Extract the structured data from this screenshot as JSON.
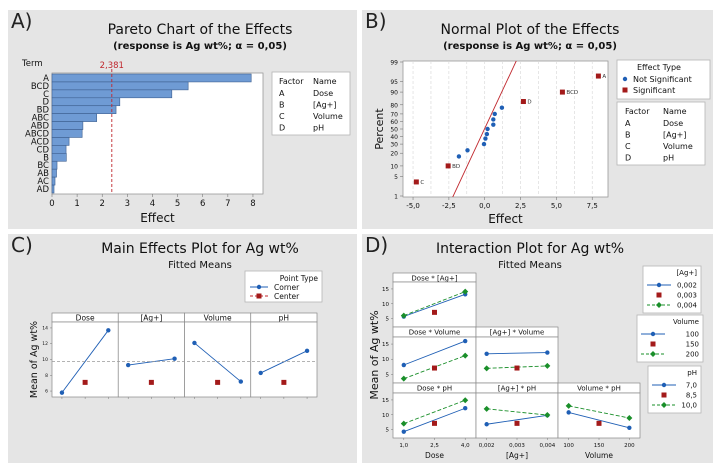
{
  "colors": {
    "panel_bg": "#e5e5e5",
    "bar_fill": "#6f9bd4",
    "bar_stroke": "#3d5f8f",
    "ref_line": "#c0272d",
    "blue": "#1f5fb5",
    "red": "#a31a1a",
    "green": "#1a8f2a",
    "mean_line": "#9a9a9a"
  },
  "panels": {
    "a": {
      "label": "A)"
    },
    "b": {
      "label": "B)"
    },
    "c": {
      "label": "C)"
    },
    "d": {
      "label": "D)"
    }
  },
  "chart_data": [
    {
      "id": "pareto",
      "type": "bar",
      "orientation": "horizontal",
      "title": "Pareto Chart of the Effects",
      "subtitle": "(response is Ag wt%; α = 0,05)",
      "xlabel": "Effect",
      "ylabel": "Term",
      "xlim": [
        0,
        8.4
      ],
      "xticks": [
        0,
        1,
        2,
        3,
        4,
        5,
        6,
        7,
        8
      ],
      "categories": [
        "A",
        "BCD",
        "C",
        "D",
        "BD",
        "ABC",
        "ABD",
        "ABCD",
        "ACD",
        "CD",
        "B",
        "BC",
        "AB",
        "AC",
        "AD"
      ],
      "values": [
        7.93,
        5.42,
        4.77,
        2.7,
        2.55,
        1.78,
        1.23,
        1.2,
        0.68,
        0.56,
        0.57,
        0.2,
        0.18,
        0.12,
        0.08
      ],
      "reference_line": {
        "value": 2.381,
        "label": "2,381"
      },
      "legend": {
        "headers": [
          "Factor",
          "Name"
        ],
        "rows": [
          [
            "A",
            "Dose"
          ],
          [
            "B",
            "[Ag+]"
          ],
          [
            "C",
            "Volume"
          ],
          [
            "D",
            "pH"
          ]
        ]
      }
    },
    {
      "id": "normal",
      "type": "scatter",
      "title": "Normal Plot of the Effects",
      "subtitle": "(response is Ag wt%; α = 0,05)",
      "xlabel": "Effect",
      "ylabel": "Percent",
      "xlim": [
        -5.7,
        8.6
      ],
      "xticks": [
        -5.0,
        -2.5,
        0.0,
        2.5,
        5.0,
        7.5
      ],
      "xtick_labels": [
        "-5,0",
        "-2,5",
        "0,0",
        "2,5",
        "5,0",
        "7,5"
      ],
      "yticks": [
        1,
        5,
        10,
        20,
        30,
        40,
        50,
        60,
        70,
        80,
        90,
        95,
        99
      ],
      "ylim": [
        1,
        99
      ],
      "series": [
        {
          "name": "Not Significant",
          "marker": "circle",
          "points": [
            [
              -1.8,
              17
            ],
            [
              -1.2,
              23
            ],
            [
              -0.05,
              30
            ],
            [
              0.05,
              37
            ],
            [
              0.15,
              43
            ],
            [
              0.2,
              50
            ],
            [
              0.6,
              56
            ],
            [
              0.6,
              63
            ],
            [
              0.7,
              70
            ],
            [
              1.2,
              77
            ]
          ]
        },
        {
          "name": "Significant",
          "marker": "square",
          "points": [
            [
              -4.77,
              3.3,
              "C"
            ],
            [
              -2.55,
              10,
              "BD"
            ],
            [
              2.7,
              83,
              "D"
            ],
            [
              5.42,
              90,
              "BCD"
            ],
            [
              7.93,
              96.7,
              "A"
            ]
          ]
        }
      ],
      "fit_line": {
        "x_at_1pct": -2.2,
        "x_at_99pct": 2.2
      },
      "legend_title": "Effect Type",
      "factor_legend": {
        "headers": [
          "Factor",
          "Name"
        ],
        "rows": [
          [
            "A",
            "Dose"
          ],
          [
            "B",
            "[Ag+]"
          ],
          [
            "C",
            "Volume"
          ],
          [
            "D",
            "pH"
          ]
        ]
      }
    },
    {
      "id": "main_effects",
      "type": "line",
      "title": "Main Effects Plot for Ag wt%",
      "subtitle": "Fitted Means",
      "ylabel": "Mean of Ag wt%",
      "ylim": [
        5.5,
        14.5
      ],
      "yticks": [
        6,
        8,
        10,
        12,
        14
      ],
      "overall_mean": 9.75,
      "legend_title": "Point Type",
      "legend_items": [
        "Corner",
        "Center"
      ],
      "factors": [
        {
          "name": "Dose",
          "corner": [
            5.8,
            13.7
          ],
          "center": 7.1
        },
        {
          "name": "[Ag+]",
          "corner": [
            9.3,
            10.1
          ],
          "center": 7.1
        },
        {
          "name": "Volume",
          "corner": [
            12.1,
            7.2
          ],
          "center": 7.1
        },
        {
          "name": "pH",
          "corner": [
            8.3,
            11.1
          ],
          "center": 7.1
        }
      ]
    },
    {
      "id": "interaction",
      "type": "line",
      "title": "Interaction Plot for Ag wt%",
      "subtitle": "Fitted Means",
      "ylabel": "Mean of Ag wt%",
      "ylim": [
        2.5,
        17
      ],
      "yticks": [
        5,
        10,
        15
      ],
      "x_axes": [
        {
          "label": "Dose",
          "ticks": [
            "1,0",
            "2,5",
            "4,0"
          ]
        },
        {
          "label": "[Ag+]",
          "ticks": [
            "0,002",
            "0,003",
            "0,004"
          ]
        },
        {
          "label": "Volume",
          "ticks": [
            "100",
            "150",
            "200"
          ]
        }
      ],
      "cells": [
        {
          "row": 0,
          "col": 0,
          "title": "Dose * [Ag+]",
          "low": [
            5.7,
            13.2
          ],
          "high": [
            6.0,
            14.1
          ],
          "center": 7.1
        },
        {
          "row": 1,
          "col": 0,
          "title": "Dose * Volume",
          "low": [
            8.1,
            16.0
          ],
          "high": [
            3.6,
            11.2
          ],
          "center": 7.1
        },
        {
          "row": 1,
          "col": 1,
          "title": "[Ag+] * Volume",
          "low": [
            11.8,
            12.2
          ],
          "high": [
            7.0,
            7.8
          ],
          "center": 7.1
        },
        {
          "row": 2,
          "col": 0,
          "title": "Dose * pH",
          "low": [
            4.3,
            12.2
          ],
          "high": [
            7.0,
            14.9
          ],
          "center": 7.1
        },
        {
          "row": 2,
          "col": 1,
          "title": "[Ag+] * pH",
          "low": [
            6.8,
            9.8
          ],
          "high": [
            12.0,
            9.9
          ],
          "center": 7.1
        },
        {
          "row": 2,
          "col": 2,
          "title": "Volume * pH",
          "low": [
            10.8,
            5.6
          ],
          "high": [
            13.0,
            8.9
          ],
          "center": 7.1
        }
      ],
      "legends": [
        {
          "title": "[Ag+]",
          "items": [
            "0,002",
            "0,003",
            "0,004"
          ]
        },
        {
          "title": "Volume",
          "items": [
            "100",
            "150",
            "200"
          ]
        },
        {
          "title": "pH",
          "items": [
            "7,0",
            "8,5",
            "10,0"
          ]
        }
      ]
    }
  ]
}
